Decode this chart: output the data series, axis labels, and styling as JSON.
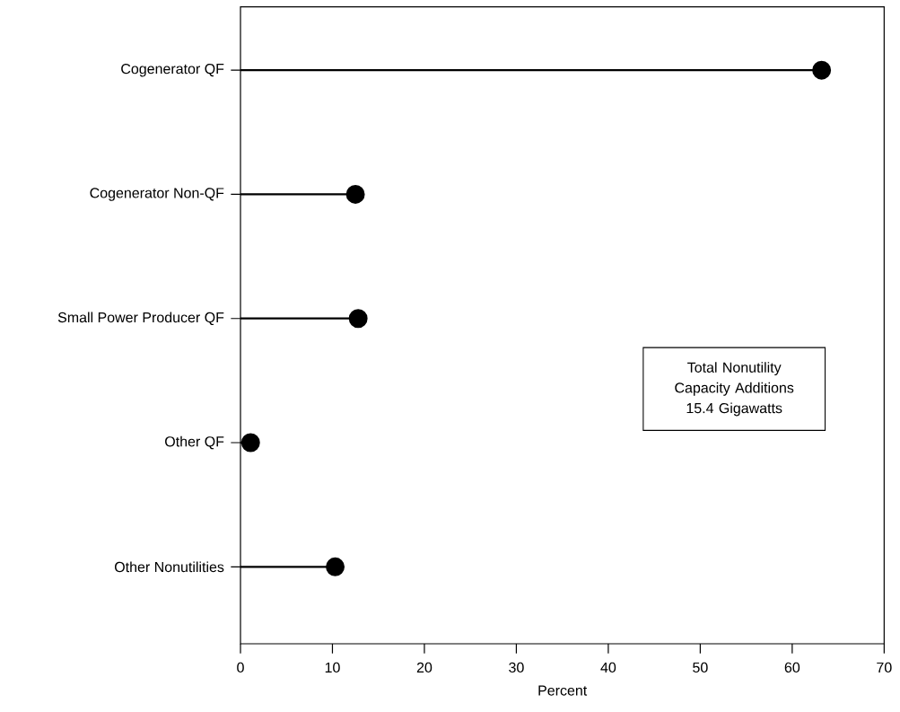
{
  "chart_data": {
    "type": "lollipop",
    "orientation": "horizontal",
    "categories": [
      "Cogenerator QF",
      "Cogenerator Non-QF",
      "Small Power Producer QF",
      "Other QF",
      "Other Nonutilities"
    ],
    "values": [
      63.2,
      12.5,
      12.8,
      1.1,
      10.3
    ],
    "color": "#000000",
    "marker": "circle",
    "xlabel": "Percent",
    "xlim": [
      0,
      70
    ],
    "xticks": [
      0,
      10,
      20,
      30,
      40,
      50,
      60,
      70
    ],
    "annotations": [
      "Total Nonutility Capacity Additions 15.4 Gigawatts"
    ]
  }
}
